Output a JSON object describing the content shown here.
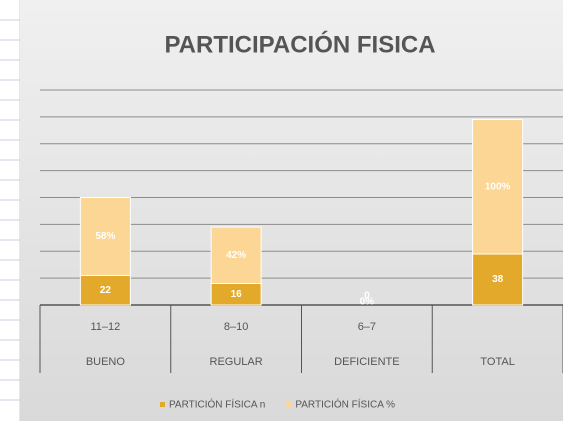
{
  "chart_data": {
    "type": "stacked_bar",
    "title": "PARTICIPACIÓN FISICA",
    "categories": [
      [
        "11–12",
        "BUENO"
      ],
      [
        "8–10",
        "REGULAR"
      ],
      [
        "6–7",
        "DEFICIENTE"
      ],
      [
        "TOTAL"
      ]
    ],
    "series": [
      {
        "name": "PARTICIÓN FÍSICA n",
        "color": "#e3a92b",
        "values": [
          22,
          16,
          0,
          38
        ]
      },
      {
        "name": "PARTICIÓN FÍSICA %",
        "color": "#fbd694",
        "values": [
          58,
          42,
          0,
          100
        ],
        "value_labels": [
          "58%",
          "42%",
          "0%",
          "100%"
        ]
      }
    ],
    "ylim": [
      0,
      160
    ],
    "yticks": [
      0,
      20,
      40,
      60,
      80,
      100,
      120,
      140,
      160
    ],
    "grid": true,
    "legend": "bottom"
  }
}
